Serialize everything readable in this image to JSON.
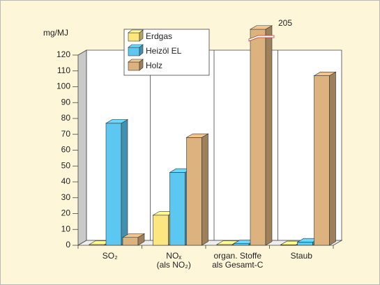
{
  "chart_data": {
    "type": "bar3d",
    "y_label": "mg/MJ",
    "categories": [
      [
        "SO₂"
      ],
      [
        "NOₓ",
        "(als NO₂)"
      ],
      [
        "organ. Stoffe",
        "als Gesamt-C"
      ],
      [
        "Staub"
      ]
    ],
    "series": [
      {
        "name": "Erdgas",
        "color": "#fbe67f",
        "values": [
          0.5,
          19,
          0.5,
          0.3
        ]
      },
      {
        "name": "Heizöl EL",
        "color": "#5cc8f2",
        "values": [
          77,
          46,
          1,
          2
        ]
      },
      {
        "name": "Holz",
        "color": "#dcb37f",
        "values": [
          5,
          68,
          205,
          107
        ]
      }
    ],
    "ylim": [
      0,
      120
    ],
    "yticks": [
      0,
      10,
      20,
      30,
      40,
      50,
      60,
      70,
      80,
      90,
      100,
      110,
      120
    ],
    "grid": false
  }
}
